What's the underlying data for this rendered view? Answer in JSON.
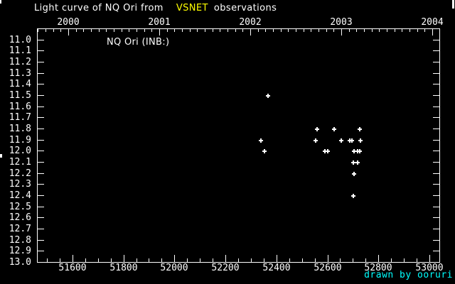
{
  "window": {
    "background": "#000000",
    "foreground": "#ffffff"
  },
  "title": {
    "text_before": "Light curve of NQ Ori from",
    "vsnet": "VSNET",
    "text_after": "observations",
    "vsnet_color": "#ffff00"
  },
  "plot": {
    "annotation": "NQ Ori (INB:)",
    "credit": "drawn by ooruri",
    "credit_color": "#00ffff"
  },
  "chart_data": {
    "type": "scatter",
    "title": "Light curve of NQ Ori from VSNET observations",
    "series_label": "NQ Ori (INB:)",
    "marker": "plus",
    "marker_color": "#ffffff",
    "grid": false,
    "x_axis": {
      "range": [
        51461,
        53039
      ],
      "major_tick_step": 200,
      "minor_tick_step": 50,
      "tick_labels": [
        "51600",
        "51800",
        "52000",
        "52200",
        "52400",
        "52600",
        "52800",
        "53000"
      ]
    },
    "top_axis": {
      "year_labels": [
        "2000",
        "2001",
        "2002",
        "2003",
        "2004"
      ],
      "minor_ticks": "monthly"
    },
    "y_axis": {
      "range": [
        10.9,
        13.0
      ],
      "tick_step": 0.1,
      "direction": "magnitude-increases-downward",
      "tick_labels": [
        "11.0",
        "11.1",
        "11.2",
        "11.3",
        "11.4",
        "11.5",
        "11.6",
        "11.7",
        "11.8",
        "11.9",
        "12.0",
        "12.1",
        "12.2",
        "12.3",
        "12.4",
        "12.5",
        "12.6",
        "12.7",
        "12.8",
        "12.9",
        "13.0"
      ]
    },
    "points": [
      [
        52339,
        11.9
      ],
      [
        52353,
        12.0
      ],
      [
        52367,
        11.5
      ],
      [
        52554,
        11.9
      ],
      [
        52559,
        11.8
      ],
      [
        52590,
        12.0
      ],
      [
        52601,
        12.0
      ],
      [
        52626,
        11.8
      ],
      [
        52654,
        11.9
      ],
      [
        52688,
        11.9
      ],
      [
        52697,
        11.9
      ],
      [
        52701,
        12.4
      ],
      [
        52702,
        12.1
      ],
      [
        52704,
        12.0
      ],
      [
        52705,
        12.2
      ],
      [
        52718,
        12.0
      ],
      [
        52718,
        12.1
      ],
      [
        52727,
        11.8
      ],
      [
        52728,
        12.0
      ],
      [
        52729,
        11.9
      ]
    ]
  }
}
